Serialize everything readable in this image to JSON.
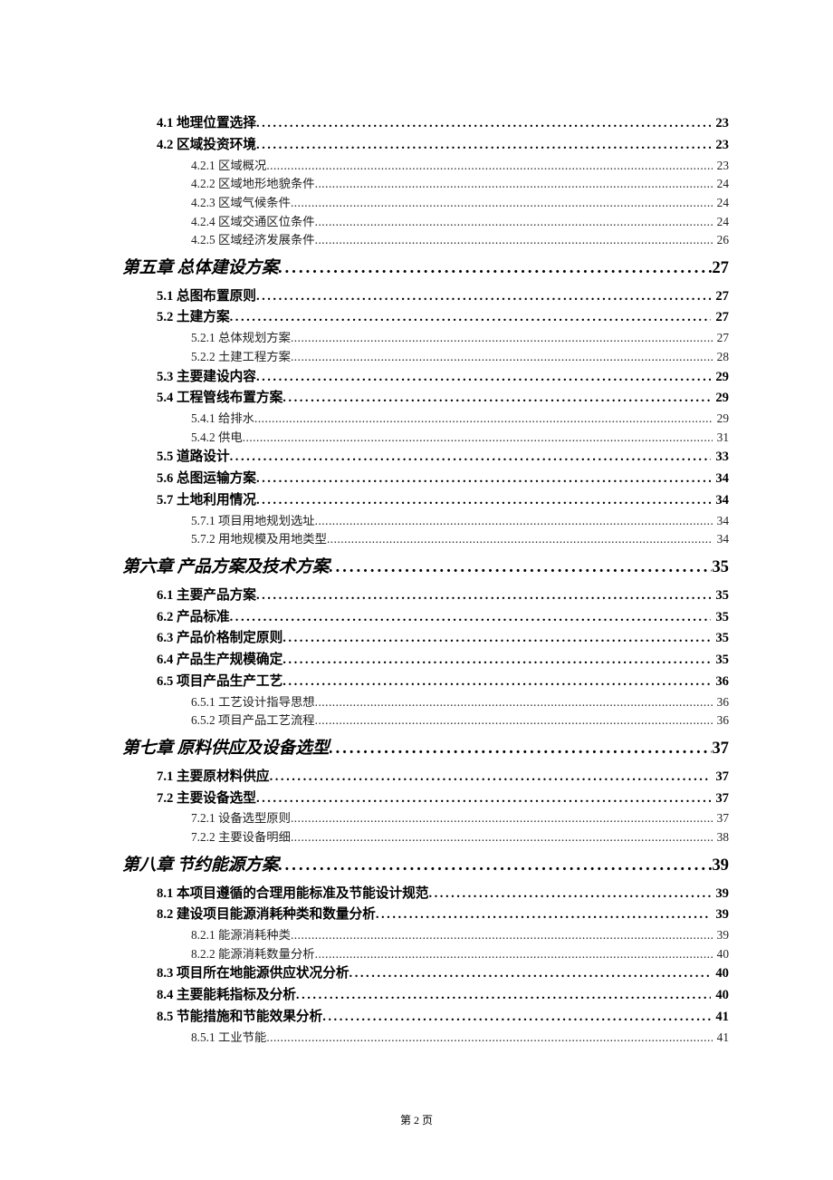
{
  "toc_entries": [
    {
      "level": 2,
      "label": "4.1 地理位置选择",
      "page": "23"
    },
    {
      "level": 2,
      "label": "4.2 区域投资环境",
      "page": "23"
    },
    {
      "level": 3,
      "label": "4.2.1 区域概况",
      "page": "23"
    },
    {
      "level": 3,
      "label": "4.2.2 区域地形地貌条件",
      "page": "24"
    },
    {
      "level": 3,
      "label": "4.2.3 区域气候条件",
      "page": "24"
    },
    {
      "level": 3,
      "label": "4.2.4 区域交通区位条件",
      "page": "24"
    },
    {
      "level": 3,
      "label": "4.2.5 区域经济发展条件",
      "page": "26"
    },
    {
      "level": 1,
      "label": "第五章  总体建设方案",
      "page": "27"
    },
    {
      "level": 2,
      "label": "5.1 总图布置原则",
      "page": "27"
    },
    {
      "level": 2,
      "label": "5.2 土建方案",
      "page": "27"
    },
    {
      "level": 3,
      "label": "5.2.1 总体规划方案",
      "page": "27"
    },
    {
      "level": 3,
      "label": "5.2.2 土建工程方案",
      "page": "28"
    },
    {
      "level": 2,
      "label": "5.3 主要建设内容",
      "page": "29"
    },
    {
      "level": 2,
      "label": "5.4 工程管线布置方案",
      "page": "29"
    },
    {
      "level": 3,
      "label": "5.4.1 给排水",
      "page": "29"
    },
    {
      "level": 3,
      "label": "5.4.2 供电",
      "page": "31"
    },
    {
      "level": 2,
      "label": "5.5 道路设计",
      "page": "33"
    },
    {
      "level": 2,
      "label": "5.6 总图运输方案",
      "page": "34"
    },
    {
      "level": 2,
      "label": "5.7 土地利用情况",
      "page": "34"
    },
    {
      "level": 3,
      "label": "5.7.1 项目用地规划选址",
      "page": "34"
    },
    {
      "level": 3,
      "label": "5.7.2 用地规模及用地类型",
      "page": "34"
    },
    {
      "level": 1,
      "label": "第六章  产品方案及技术方案",
      "page": "35"
    },
    {
      "level": 2,
      "label": "6.1 主要产品方案",
      "page": "35"
    },
    {
      "level": 2,
      "label": "6.2 产品标准",
      "page": "35"
    },
    {
      "level": 2,
      "label": "6.3 产品价格制定原则",
      "page": "35"
    },
    {
      "level": 2,
      "label": "6.4 产品生产规模确定",
      "page": "35"
    },
    {
      "level": 2,
      "label": "6.5 项目产品生产工艺",
      "page": "36"
    },
    {
      "level": 3,
      "label": "6.5.1 工艺设计指导思想",
      "page": "36"
    },
    {
      "level": 3,
      "label": "6.5.2 项目产品工艺流程",
      "page": "36"
    },
    {
      "level": 1,
      "label": "第七章  原料供应及设备选型",
      "page": "37"
    },
    {
      "level": 2,
      "label": "7.1 主要原材料供应",
      "page": "37"
    },
    {
      "level": 2,
      "label": "7.2 主要设备选型",
      "page": "37"
    },
    {
      "level": 3,
      "label": "7.2.1 设备选型原则",
      "page": "37"
    },
    {
      "level": 3,
      "label": "7.2.2 主要设备明细",
      "page": "38"
    },
    {
      "level": 1,
      "label": "第八章  节约能源方案",
      "page": "39"
    },
    {
      "level": 2,
      "label": "8.1 本项目遵循的合理用能标准及节能设计规范",
      "page": "39"
    },
    {
      "level": 2,
      "label": "8.2 建设项目能源消耗种类和数量分析",
      "page": "39"
    },
    {
      "level": 3,
      "label": "8.2.1 能源消耗种类",
      "page": "39"
    },
    {
      "level": 3,
      "label": "8.2.2 能源消耗数量分析",
      "page": "40"
    },
    {
      "level": 2,
      "label": "8.3 项目所在地能源供应状况分析",
      "page": "40"
    },
    {
      "level": 2,
      "label": "8.4 主要能耗指标及分析",
      "page": "40"
    },
    {
      "level": 2,
      "label": "8.5 节能措施和节能效果分析",
      "page": "41"
    },
    {
      "level": 3,
      "label": "8.5.1 工业节能",
      "page": "41"
    }
  ],
  "footer_text": "第 2 页",
  "colors": {
    "background": "#ffffff",
    "text": "#000000"
  },
  "typography": {
    "level1_fontsize": 18.67,
    "level2_fontsize": 14.67,
    "level3_fontsize": 13.33,
    "footer_fontsize": 12
  }
}
